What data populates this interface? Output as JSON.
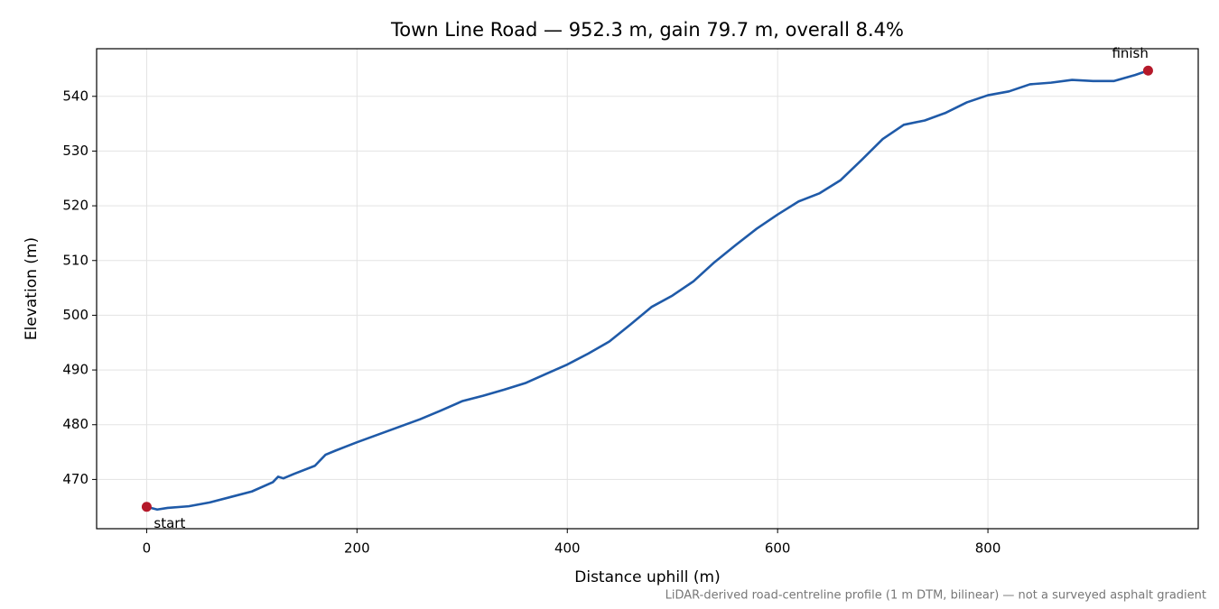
{
  "chart_data": {
    "type": "line",
    "title": "Town Line Road — 952.3 m, gain 79.7 m, overall 8.4%",
    "xlabel": "Distance uphill (m)",
    "ylabel": "Elevation (m)",
    "note": "LiDAR-derived road-centreline profile (1 m DTM, bilinear) — not a surveyed asphalt gradient",
    "x": [
      0,
      10,
      20,
      40,
      60,
      80,
      100,
      120,
      125,
      130,
      140,
      160,
      170,
      180,
      200,
      220,
      240,
      260,
      280,
      300,
      320,
      340,
      360,
      380,
      400,
      420,
      440,
      460,
      480,
      500,
      520,
      540,
      560,
      580,
      600,
      620,
      640,
      660,
      680,
      700,
      720,
      740,
      760,
      780,
      800,
      820,
      840,
      860,
      880,
      900,
      920,
      940,
      952.3
    ],
    "values": [
      465.0,
      464.5,
      464.8,
      465.1,
      465.8,
      466.8,
      467.8,
      469.5,
      470.5,
      470.2,
      471.0,
      472.5,
      474.5,
      475.3,
      476.8,
      478.2,
      479.6,
      481.0,
      482.6,
      484.3,
      485.3,
      486.4,
      487.6,
      489.3,
      491.0,
      493.0,
      495.2,
      498.3,
      501.5,
      503.6,
      506.2,
      509.7,
      512.8,
      515.8,
      518.4,
      520.8,
      522.3,
      524.7,
      528.4,
      532.2,
      534.8,
      535.6,
      537.0,
      538.9,
      540.2,
      540.9,
      542.2,
      542.5,
      543.0,
      542.8,
      542.8,
      543.9,
      544.7
    ],
    "color": "#1f5aa8",
    "marker_color": "#b5192a",
    "annotations": [
      "start",
      "finish"
    ],
    "xlim": [
      -47.6,
      1000
    ],
    "ylim": [
      461.0,
      548.7
    ],
    "xticks": [
      0,
      200,
      400,
      600,
      800
    ],
    "yticks": [
      470,
      480,
      490,
      500,
      510,
      520,
      530,
      540
    ],
    "grid": true
  }
}
